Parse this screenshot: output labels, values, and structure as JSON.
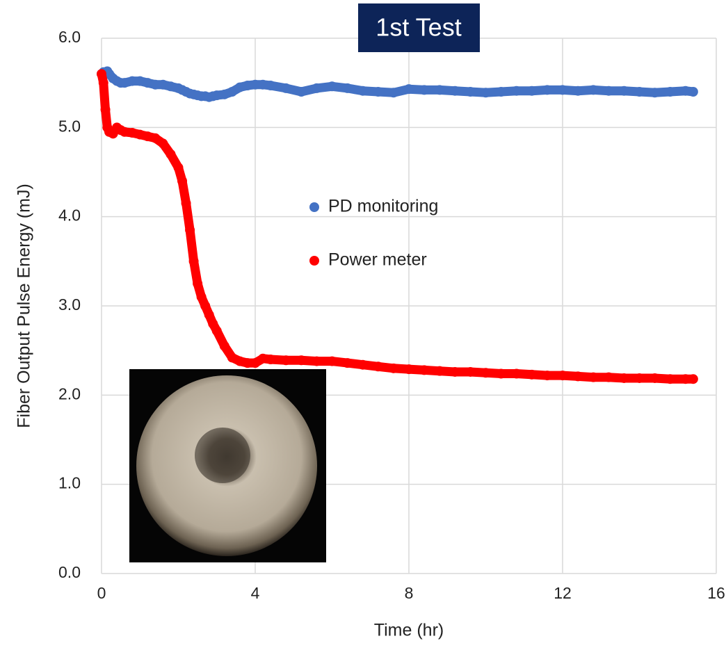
{
  "chart_data": {
    "type": "scatter",
    "title": "1st Test",
    "xlabel": "Time (hr)",
    "ylabel": "Fiber Output Pulse Energy (mJ)",
    "x": [
      0,
      0.05,
      0.1,
      0.15,
      0.2,
      0.3,
      0.4,
      0.5,
      0.6,
      0.8,
      1.0,
      1.2,
      1.4,
      1.6,
      1.8,
      2.0,
      2.1,
      2.2,
      2.3,
      2.4,
      2.5,
      2.6,
      2.7,
      2.8,
      2.9,
      3.0,
      3.2,
      3.4,
      3.6,
      3.8,
      4.0,
      4.2,
      4.4,
      4.8,
      5.2,
      5.6,
      6.0,
      6.4,
      6.8,
      7.2,
      7.6,
      8.0,
      8.4,
      8.8,
      9.2,
      9.6,
      10.0,
      10.4,
      10.8,
      11.2,
      11.6,
      12.0,
      12.4,
      12.8,
      13.2,
      13.6,
      14.0,
      14.4,
      14.8,
      15.2,
      15.4
    ],
    "series": [
      {
        "name": "PD monitoring",
        "color": "#4472c4",
        "values": [
          5.6,
          5.62,
          5.62,
          5.63,
          5.6,
          5.55,
          5.52,
          5.5,
          5.5,
          5.52,
          5.52,
          5.5,
          5.48,
          5.48,
          5.46,
          5.44,
          5.42,
          5.4,
          5.38,
          5.37,
          5.36,
          5.35,
          5.35,
          5.34,
          5.35,
          5.36,
          5.37,
          5.4,
          5.45,
          5.47,
          5.48,
          5.48,
          5.47,
          5.44,
          5.4,
          5.44,
          5.46,
          5.44,
          5.41,
          5.4,
          5.39,
          5.43,
          5.42,
          5.42,
          5.41,
          5.4,
          5.39,
          5.4,
          5.41,
          5.41,
          5.42,
          5.42,
          5.41,
          5.42,
          5.41,
          5.41,
          5.4,
          5.39,
          5.4,
          5.41,
          5.4
        ]
      },
      {
        "name": "Power meter",
        "color": "#ff0000",
        "values": [
          5.6,
          5.5,
          5.2,
          5.0,
          4.95,
          4.93,
          5.0,
          4.97,
          4.95,
          4.94,
          4.92,
          4.9,
          4.88,
          4.82,
          4.7,
          4.55,
          4.4,
          4.15,
          3.85,
          3.5,
          3.25,
          3.1,
          3.0,
          2.9,
          2.8,
          2.72,
          2.55,
          2.42,
          2.38,
          2.36,
          2.36,
          2.41,
          2.4,
          2.39,
          2.39,
          2.38,
          2.38,
          2.36,
          2.34,
          2.32,
          2.3,
          2.29,
          2.28,
          2.27,
          2.26,
          2.26,
          2.25,
          2.24,
          2.24,
          2.23,
          2.22,
          2.22,
          2.21,
          2.2,
          2.2,
          2.19,
          2.19,
          2.19,
          2.18,
          2.18,
          2.18
        ]
      }
    ],
    "xlim": [
      0,
      16
    ],
    "xticks": [
      0,
      4,
      8,
      12,
      16
    ],
    "ylim": [
      0,
      6
    ],
    "yticks": [
      {
        "value": 0,
        "label": "0.0"
      },
      {
        "value": 1,
        "label": "1.0"
      },
      {
        "value": 2,
        "label": "2.0"
      },
      {
        "value": 3,
        "label": "3.0"
      },
      {
        "value": 4,
        "label": "4.0"
      },
      {
        "value": 5,
        "label": "5.0"
      },
      {
        "value": 6,
        "label": "6.0"
      }
    ],
    "grid": true
  }
}
